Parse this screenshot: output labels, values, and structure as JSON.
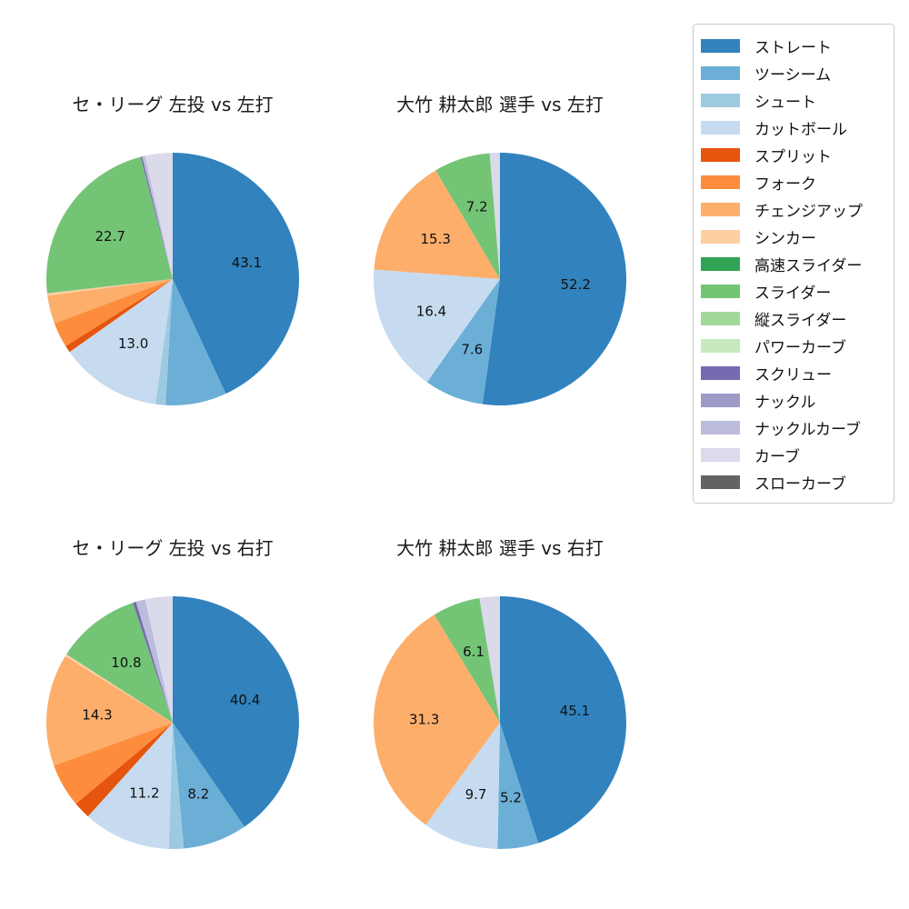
{
  "page": {
    "background": "#ffffff",
    "text_color": "#111111"
  },
  "palette": {
    "ストレート": "#3182bd",
    "ツーシーム": "#6baed6",
    "シュート": "#9ecae1",
    "カットボール": "#c6dbef",
    "スプリット": "#e6550d",
    "フォーク": "#fd8d3c",
    "チェンジアップ": "#fdae6b",
    "シンカー": "#fdd0a2",
    "高速スライダー": "#31a354",
    "スライダー": "#74c476",
    "縦スライダー": "#a1d99b",
    "パワーカーブ": "#c7e9c0",
    "スクリュー": "#756bb1",
    "ナックル": "#9e9ac8",
    "ナックルカーブ": "#bcbddc",
    "カーブ": "#dadaeb",
    "スローカーブ": "#636363"
  },
  "legend": {
    "position": "top-right",
    "border_color": "#cccccc",
    "items": [
      {
        "label": "ストレート",
        "color": "#3182bd"
      },
      {
        "label": "ツーシーム",
        "color": "#6baed6"
      },
      {
        "label": "シュート",
        "color": "#9ecae1"
      },
      {
        "label": "カットボール",
        "color": "#c6dbef"
      },
      {
        "label": "スプリット",
        "color": "#e6550d"
      },
      {
        "label": "フォーク",
        "color": "#fd8d3c"
      },
      {
        "label": "チェンジアップ",
        "color": "#fdae6b"
      },
      {
        "label": "シンカー",
        "color": "#fdd0a2"
      },
      {
        "label": "高速スライダー",
        "color": "#31a354"
      },
      {
        "label": "スライダー",
        "color": "#74c476"
      },
      {
        "label": "縦スライダー",
        "color": "#a1d99b"
      },
      {
        "label": "パワーカーブ",
        "color": "#c7e9c0"
      },
      {
        "label": "スクリュー",
        "color": "#756bb1"
      },
      {
        "label": "ナックル",
        "color": "#9e9ac8"
      },
      {
        "label": "ナックルカーブ",
        "color": "#bcbddc"
      },
      {
        "label": "カーブ",
        "color": "#dadaeb"
      },
      {
        "label": "スローカーブ",
        "color": "#636363"
      }
    ]
  },
  "chart_data": [
    {
      "type": "pie",
      "title": "セ・リーグ 左投 vs 左打",
      "start_angle": "top",
      "direction": "clockwise",
      "label_placement": "inside",
      "label_distance": 0.6,
      "slices": [
        {
          "name": "ストレート",
          "value": 43.1,
          "label": "43.1"
        },
        {
          "name": "ツーシーム",
          "value": 7.8,
          "label": ""
        },
        {
          "name": "シュート",
          "value": 1.3,
          "label": ""
        },
        {
          "name": "カットボール",
          "value": 13.0,
          "label": "13.0"
        },
        {
          "name": "スプリット",
          "value": 0.9,
          "label": ""
        },
        {
          "name": "フォーク",
          "value": 3.2,
          "label": ""
        },
        {
          "name": "チェンジアップ",
          "value": 3.6,
          "label": ""
        },
        {
          "name": "シンカー",
          "value": 0.3,
          "label": ""
        },
        {
          "name": "スライダー",
          "value": 22.7,
          "label": "22.7"
        },
        {
          "name": "スクリュー",
          "value": 0.2,
          "label": ""
        },
        {
          "name": "ナックルカーブ",
          "value": 0.4,
          "label": ""
        },
        {
          "name": "カーブ",
          "value": 3.5,
          "label": ""
        }
      ]
    },
    {
      "type": "pie",
      "title": "大竹 耕太郎 選手 vs 左打",
      "start_angle": "top",
      "direction": "clockwise",
      "label_placement": "inside",
      "label_distance": 0.6,
      "slices": [
        {
          "name": "ストレート",
          "value": 52.2,
          "label": "52.2"
        },
        {
          "name": "ツーシーム",
          "value": 7.6,
          "label": "7.6"
        },
        {
          "name": "カットボール",
          "value": 16.4,
          "label": "16.4"
        },
        {
          "name": "チェンジアップ",
          "value": 15.3,
          "label": "15.3"
        },
        {
          "name": "スライダー",
          "value": 7.2,
          "label": "7.2"
        },
        {
          "name": "カーブ",
          "value": 1.3,
          "label": ""
        }
      ]
    },
    {
      "type": "pie",
      "title": "セ・リーグ 左投 vs 右打",
      "start_angle": "top",
      "direction": "clockwise",
      "label_placement": "inside",
      "label_distance": 0.6,
      "slices": [
        {
          "name": "ストレート",
          "value": 40.4,
          "label": "40.4"
        },
        {
          "name": "ツーシーム",
          "value": 8.2,
          "label": "8.2"
        },
        {
          "name": "シュート",
          "value": 1.9,
          "label": ""
        },
        {
          "name": "カットボール",
          "value": 11.2,
          "label": "11.2"
        },
        {
          "name": "スプリット",
          "value": 2.2,
          "label": ""
        },
        {
          "name": "フォーク",
          "value": 5.6,
          "label": ""
        },
        {
          "name": "チェンジアップ",
          "value": 14.3,
          "label": "14.3"
        },
        {
          "name": "シンカー",
          "value": 0.3,
          "label": ""
        },
        {
          "name": "スライダー",
          "value": 10.8,
          "label": "10.8"
        },
        {
          "name": "スクリュー",
          "value": 0.4,
          "label": ""
        },
        {
          "name": "ナックルカーブ",
          "value": 1.2,
          "label": ""
        },
        {
          "name": "カーブ",
          "value": 3.5,
          "label": ""
        }
      ]
    },
    {
      "type": "pie",
      "title": "大竹 耕太郎 選手 vs 右打",
      "start_angle": "top",
      "direction": "clockwise",
      "label_placement": "inside",
      "label_distance": 0.6,
      "slices": [
        {
          "name": "ストレート",
          "value": 45.1,
          "label": "45.1"
        },
        {
          "name": "ツーシーム",
          "value": 5.2,
          "label": "5.2"
        },
        {
          "name": "カットボール",
          "value": 9.7,
          "label": "9.7"
        },
        {
          "name": "チェンジアップ",
          "value": 31.3,
          "label": "31.3"
        },
        {
          "name": "スライダー",
          "value": 6.1,
          "label": "6.1"
        },
        {
          "name": "カーブ",
          "value": 2.6,
          "label": ""
        }
      ]
    }
  ]
}
